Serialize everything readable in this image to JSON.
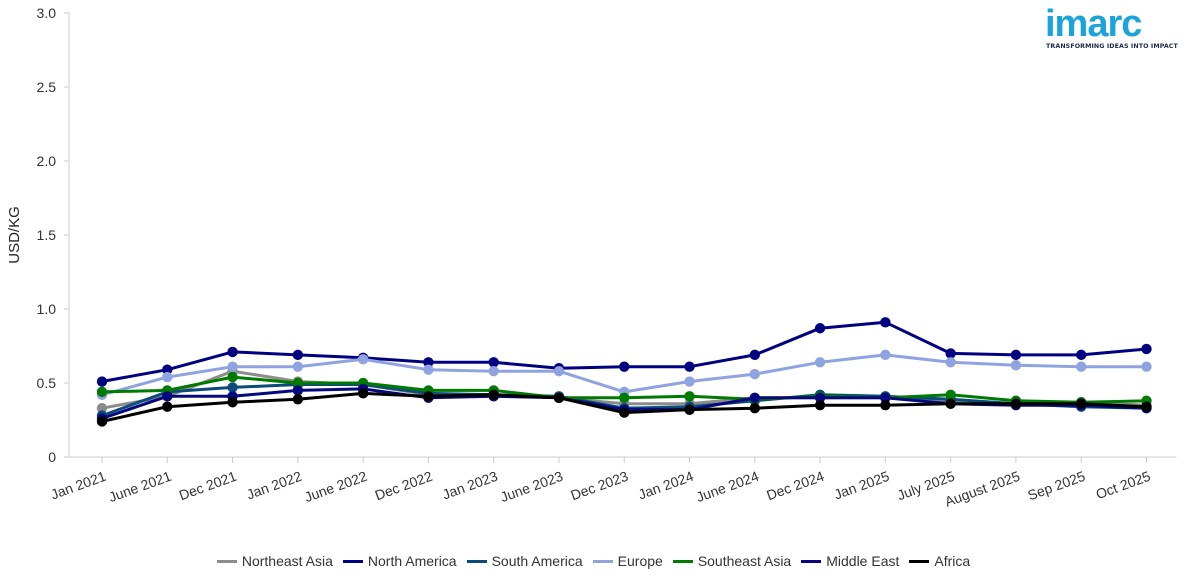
{
  "brand": {
    "logo_text": "imarc",
    "tagline": "TRANSFORMING IDEAS INTO IMPACT",
    "color": "#1aa3dc"
  },
  "chart_data": {
    "type": "line",
    "title": "",
    "xlabel": "",
    "ylabel": "USD/KG",
    "ylim": [
      0,
      3.0
    ],
    "yticks": [
      "0",
      "0.5",
      "1.0",
      "1.5",
      "2.0",
      "2.5",
      "3.0"
    ],
    "grid": false,
    "legend_position": "bottom",
    "categories": [
      "Jan 2021",
      "June 2021",
      "Dec 2021",
      "Jan 2022",
      "June 2022",
      "Dec 2022",
      "Jan 2023",
      "June 2023",
      "Dec 2023",
      "Jan 2024",
      "June 2024",
      "Dec 2024",
      "Jan 2025",
      "July 2025",
      "August 2025",
      "Sep 2025",
      "Oct 2025"
    ],
    "series": [
      {
        "name": "Northeast Asia",
        "color": "#8c8c8c",
        "values": [
          0.33,
          0.41,
          0.58,
          0.51,
          0.49,
          0.42,
          0.42,
          0.4,
          0.36,
          0.36,
          0.4,
          0.4,
          0.4,
          0.37,
          0.36,
          0.37,
          0.35
        ]
      },
      {
        "name": "North America",
        "color": "#000080",
        "values": [
          0.51,
          0.59,
          0.71,
          0.69,
          0.67,
          0.64,
          0.64,
          0.6,
          0.61,
          0.61,
          0.69,
          0.87,
          0.91,
          0.7,
          0.69,
          0.69,
          0.73
        ]
      },
      {
        "name": "South America",
        "color": "#0b4a7a",
        "values": [
          0.28,
          0.44,
          0.47,
          0.49,
          0.49,
          0.43,
          0.42,
          0.41,
          0.33,
          0.34,
          0.38,
          0.42,
          0.41,
          0.39,
          0.36,
          0.34,
          0.33
        ]
      },
      {
        "name": "Europe",
        "color": "#8fa3e0",
        "values": [
          0.42,
          0.54,
          0.61,
          0.61,
          0.66,
          0.59,
          0.58,
          0.58,
          0.44,
          0.51,
          0.56,
          0.64,
          0.69,
          0.64,
          0.62,
          0.61,
          0.61
        ]
      },
      {
        "name": "Southeast Asia",
        "color": "#007a00",
        "values": [
          0.44,
          0.45,
          0.54,
          0.5,
          0.5,
          0.45,
          0.45,
          0.4,
          0.4,
          0.41,
          0.39,
          0.41,
          0.4,
          0.42,
          0.38,
          0.37,
          0.38
        ]
      },
      {
        "name": "Middle East",
        "color": "#08087e",
        "values": [
          0.26,
          0.41,
          0.41,
          0.45,
          0.46,
          0.4,
          0.41,
          0.4,
          0.32,
          0.32,
          0.4,
          0.4,
          0.4,
          0.36,
          0.35,
          0.35,
          0.33
        ]
      },
      {
        "name": "Africa",
        "color": "#000000",
        "values": [
          0.24,
          0.34,
          0.37,
          0.39,
          0.43,
          0.41,
          0.42,
          0.4,
          0.3,
          0.32,
          0.33,
          0.35,
          0.35,
          0.36,
          0.36,
          0.36,
          0.34
        ]
      }
    ]
  }
}
